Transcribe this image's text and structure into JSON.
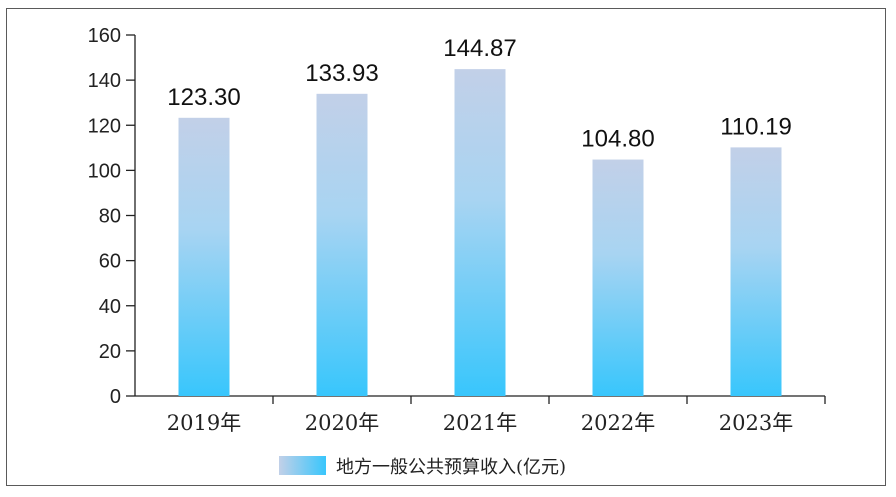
{
  "chart_data": {
    "type": "bar",
    "categories": [
      "2019年",
      "2020年",
      "2021年",
      "2022年",
      "2023年"
    ],
    "series": [
      {
        "name": "地方一般公共预算收入(亿元)",
        "values": [
          123.3,
          133.93,
          144.87,
          104.8,
          110.19
        ]
      }
    ],
    "data_labels": [
      "123.30",
      "133.93",
      "144.87",
      "104.80",
      "110.19"
    ],
    "yticks": [
      "0",
      "20",
      "40",
      "60",
      "80",
      "100",
      "120",
      "140",
      "160"
    ],
    "ylim": [
      0,
      160
    ],
    "ystep": 20,
    "grid": false,
    "legend_position": "bottom-center",
    "colors": {
      "bar_top": "#c2d0e8",
      "bar_bottom": "#38c6fc",
      "axis": "#222222"
    }
  }
}
